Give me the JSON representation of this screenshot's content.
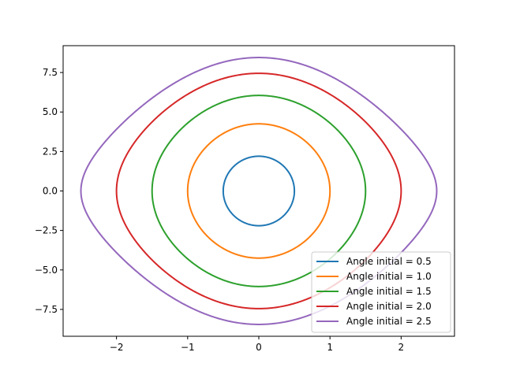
{
  "chart_data": {
    "type": "line",
    "title": "",
    "xlabel": "",
    "ylabel": "",
    "xlim": [
      -2.75,
      2.75
    ],
    "ylim": [
      -9.2,
      9.2
    ],
    "x_ticks": [
      -2,
      -1,
      0,
      1,
      2
    ],
    "x_tick_labels": [
      "−2",
      "−1",
      "0",
      "1",
      "2"
    ],
    "y_ticks": [
      -7.5,
      -5.0,
      -2.5,
      0.0,
      2.5,
      5.0,
      7.5
    ],
    "y_tick_labels": [
      "−7.5",
      "−5.0",
      "−2.5",
      "0.0",
      "2.5",
      "5.0",
      "7.5"
    ],
    "grid": false,
    "legend_position": "lower right",
    "series": [
      {
        "name": "Angle initial = 0.5",
        "color": "#1f77b4",
        "theta0": 0.5,
        "x_range": [
          -0.5,
          0.5
        ],
        "y_range": [
          -2.2,
          2.2
        ]
      },
      {
        "name": "Angle initial = 1.0",
        "color": "#ff7f0e",
        "theta0": 1.0,
        "x_range": [
          -1.0,
          1.0
        ],
        "y_range": [
          -4.25,
          4.25
        ]
      },
      {
        "name": "Angle initial = 1.5",
        "color": "#2ca02c",
        "theta0": 1.5,
        "x_range": [
          -1.5,
          1.5
        ],
        "y_range": [
          -6.05,
          6.05
        ]
      },
      {
        "name": "Angle initial = 2.0",
        "color": "#d62728",
        "theta0": 2.0,
        "x_range": [
          -2.0,
          2.0
        ],
        "y_range": [
          -7.45,
          7.45
        ]
      },
      {
        "name": "Angle initial = 2.5",
        "color": "#9467bd",
        "theta0": 2.5,
        "x_range": [
          -2.5,
          2.5
        ],
        "y_range": [
          -8.45,
          8.45
        ]
      }
    ]
  }
}
